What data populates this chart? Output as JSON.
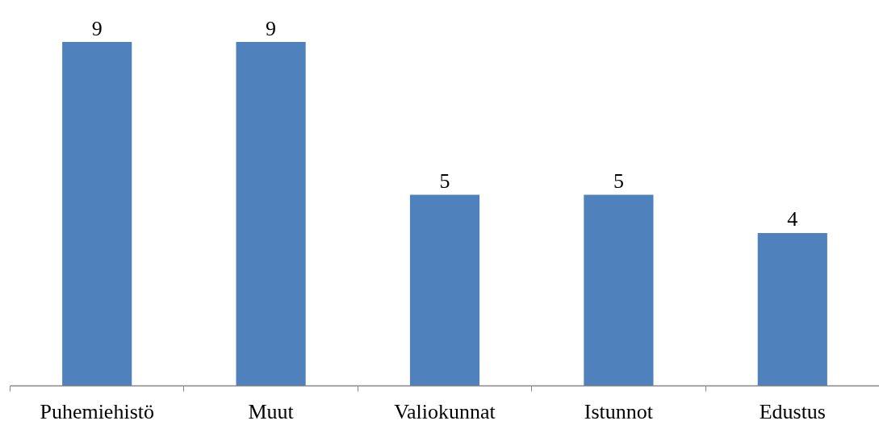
{
  "chart_data": {
    "type": "bar",
    "categories": [
      "Puhemiehistö",
      "Muut",
      "Valiokunnat",
      "Istunnot",
      "Edustus"
    ],
    "values": [
      9,
      9,
      5,
      5,
      4
    ],
    "color": "#4f81bd",
    "data_labels": true,
    "tick_labels": "x"
  }
}
